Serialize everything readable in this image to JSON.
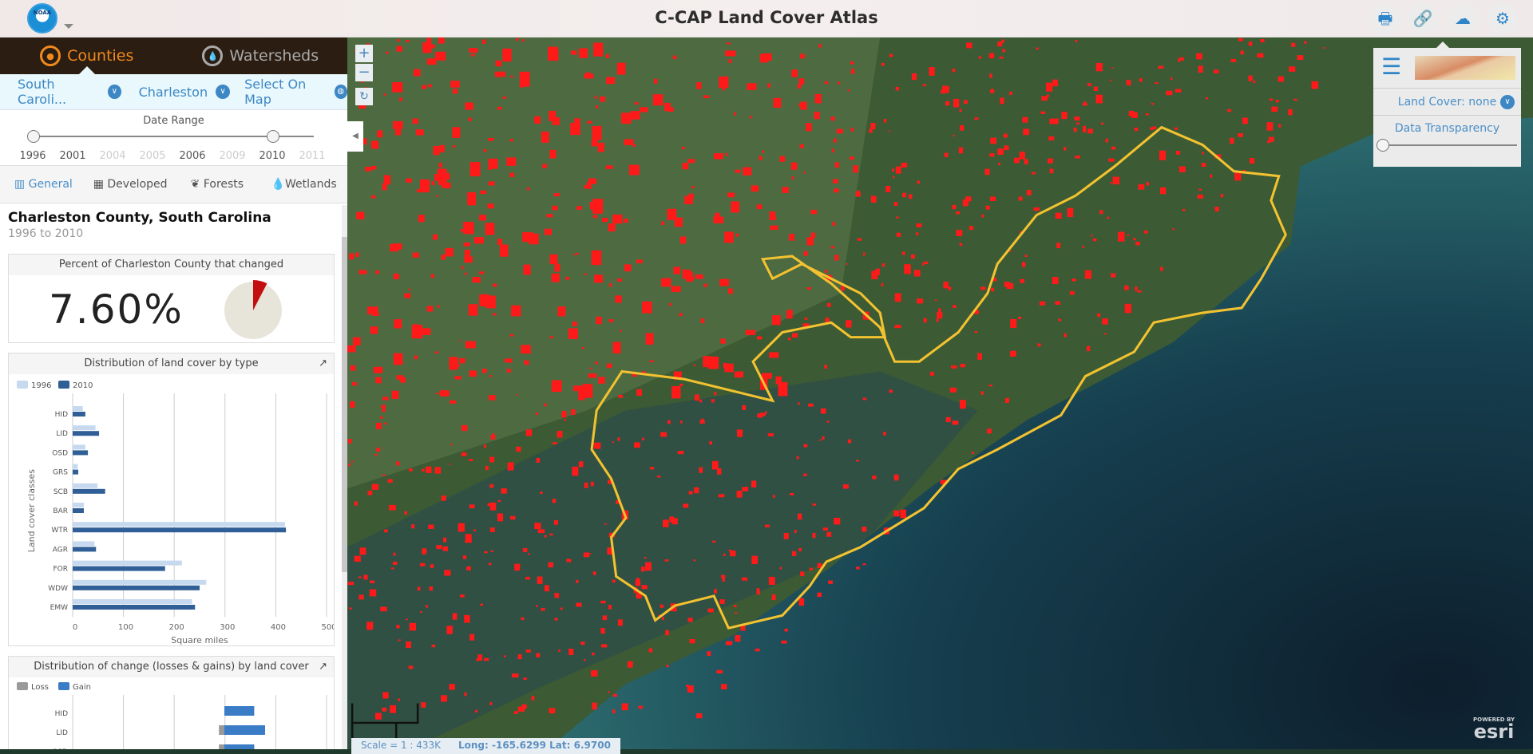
{
  "header": {
    "title": "C-CAP Land Cover Atlas",
    "logo_text": "NOAA",
    "buttons": [
      {
        "name": "print",
        "icon": "print-icon"
      },
      {
        "name": "share-link",
        "icon": "link-icon"
      },
      {
        "name": "download",
        "icon": "cloud-download-icon"
      },
      {
        "name": "settings",
        "icon": "gear-icon"
      }
    ]
  },
  "layer_tabs": [
    {
      "label": "Counties",
      "active": true
    },
    {
      "label": "Watersheds",
      "active": false
    }
  ],
  "location": {
    "state": "South Caroli...",
    "county": "Charleston",
    "select_on_map": "Select On Map"
  },
  "date_range": {
    "label": "Date Range",
    "years": [
      "1996",
      "2001",
      "2004",
      "2005",
      "2006",
      "2009",
      "2010",
      "2011"
    ],
    "available": [
      true,
      true,
      false,
      false,
      true,
      false,
      true,
      false
    ],
    "start": "1996",
    "end": "2010"
  },
  "tabs": [
    {
      "label": "General",
      "active": true
    },
    {
      "label": "Developed"
    },
    {
      "label": "Forests"
    },
    {
      "label": "Wetlands"
    }
  ],
  "summary": {
    "title": "Charleston County, South Carolina",
    "subtitle": "1996 to 2010",
    "panel_title": "Percent of Charleston County that changed",
    "percent": "7.60%",
    "percent_value": 7.6
  },
  "chart_data": [
    {
      "type": "bar",
      "title": "Distribution of land cover by type",
      "orientation": "horizontal",
      "categories": [
        "HID",
        "LID",
        "OSD",
        "GRS",
        "SCB",
        "BAR",
        "WTR",
        "AGR",
        "FOR",
        "WDW",
        "EMW"
      ],
      "series": [
        {
          "name": "1996",
          "color": "#c6d9ef",
          "values": [
            20,
            45,
            25,
            10,
            49,
            22,
            418,
            43,
            215,
            263,
            235
          ]
        },
        {
          "name": "2010",
          "color": "#2f5f96",
          "values": [
            25,
            52,
            30,
            11,
            64,
            22,
            420,
            46,
            182,
            250,
            241
          ]
        }
      ],
      "xlabel": "Square miles",
      "ylabel": "Land cover classes",
      "xlim": [
        0,
        500
      ],
      "xticks": [
        "0",
        "100",
        "200",
        "300",
        "400",
        "500"
      ],
      "grid": true,
      "legend": "top-left"
    },
    {
      "type": "bar",
      "title": "Distribution of change (losses & gains) by land cover",
      "orientation": "horizontal",
      "categories": [
        "HID",
        "LID",
        "OSD"
      ],
      "series": [
        {
          "name": "Loss",
          "color": "#999999",
          "values": [
            0,
            -1,
            -1
          ]
        },
        {
          "name": "Gain",
          "color": "#3a7cc6",
          "values": [
            5.5,
            7.5,
            5.5
          ]
        }
      ],
      "grid": true,
      "legend": "top-left"
    }
  ],
  "map": {
    "scale": "Scale = 1 : 433K",
    "coords": "Long: -165.6299 Lat: 6.9700",
    "attribution": "POWERED BY",
    "brand": "esri"
  },
  "basemap_panel": {
    "land_cover": "Land Cover: none",
    "transparency_label": "Data Transparency",
    "transparency": 0
  }
}
